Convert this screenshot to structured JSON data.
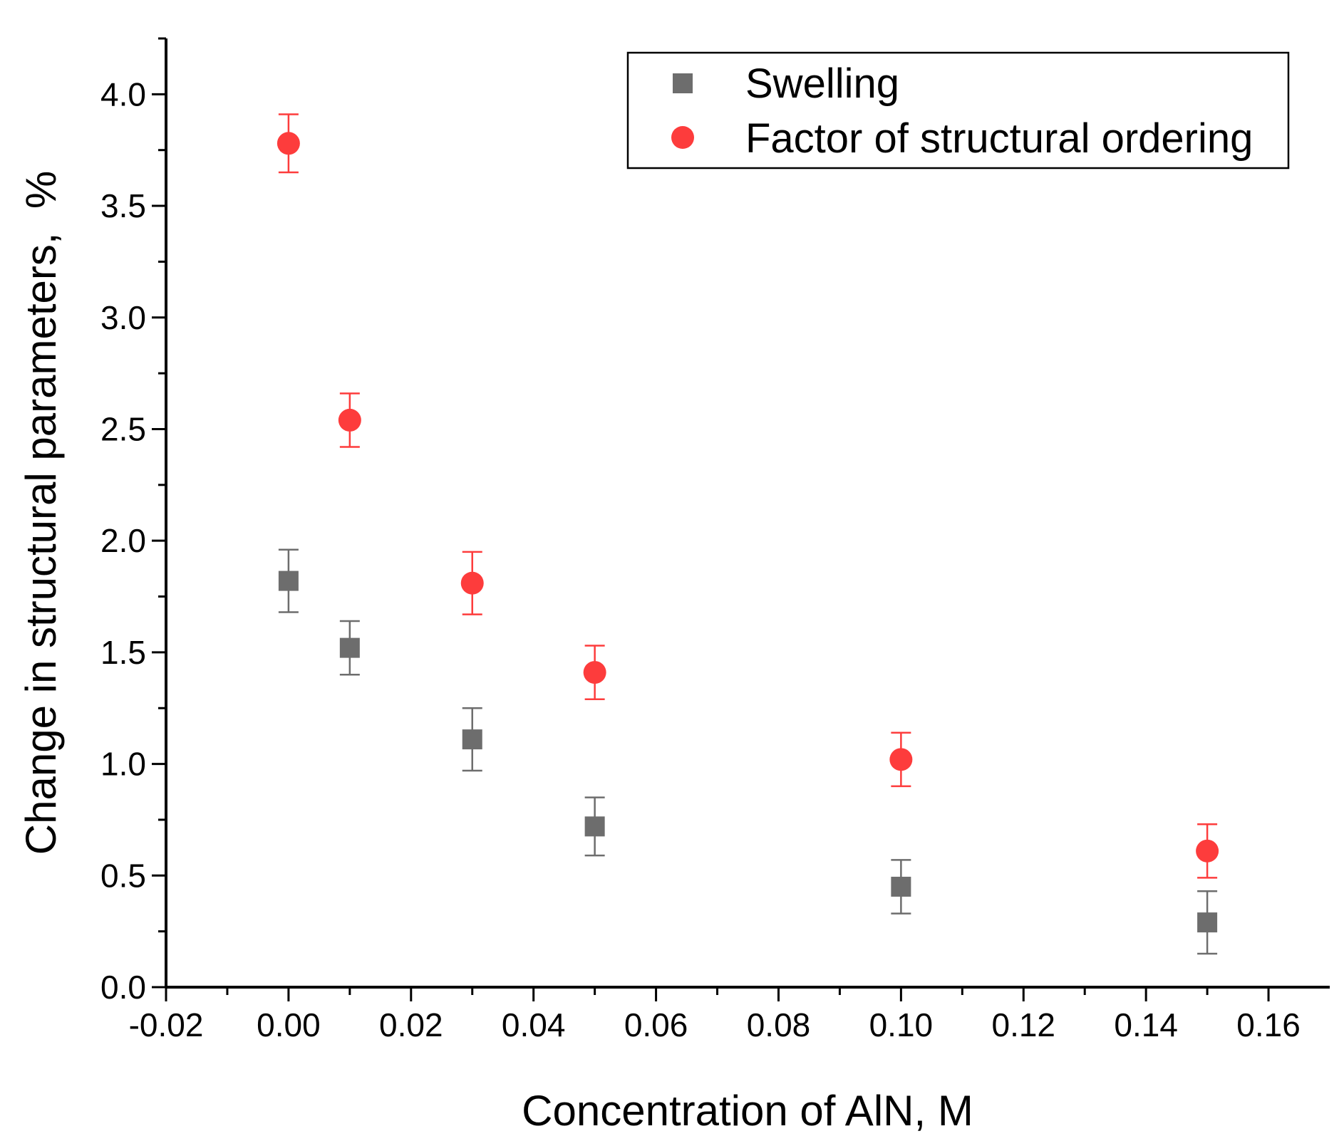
{
  "chart_data": {
    "type": "scatter",
    "title": "",
    "xlabel": "Concentration of AlN, M",
    "ylabel": "Change in structural parameters,  %",
    "xlim": [
      -0.02,
      0.17
    ],
    "ylim": [
      0.0,
      4.25
    ],
    "x_ticks": [
      "-0.02",
      "0.00",
      "0.02",
      "0.04",
      "0.06",
      "0.08",
      "0.10",
      "0.12",
      "0.14",
      "0.16"
    ],
    "y_ticks": [
      "0.0",
      "0.5",
      "1.0",
      "1.5",
      "2.0",
      "2.5",
      "3.0",
      "3.5",
      "4.0"
    ],
    "legend_position": "top-right",
    "series": [
      {
        "name": "Swelling",
        "marker": "square",
        "color": "#6d6d6d",
        "points": [
          {
            "x": 0.0,
            "y": 1.82,
            "err": 0.14
          },
          {
            "x": 0.01,
            "y": 1.52,
            "err": 0.12
          },
          {
            "x": 0.03,
            "y": 1.11,
            "err": 0.14
          },
          {
            "x": 0.05,
            "y": 0.72,
            "err": 0.13
          },
          {
            "x": 0.1,
            "y": 0.45,
            "err": 0.12
          },
          {
            "x": 0.15,
            "y": 0.29,
            "err": 0.14
          }
        ]
      },
      {
        "name": "Factor of structural ordering",
        "marker": "circle",
        "color": "#fd3c3c",
        "points": [
          {
            "x": 0.0,
            "y": 3.78,
            "err": 0.13
          },
          {
            "x": 0.01,
            "y": 2.54,
            "err": 0.12
          },
          {
            "x": 0.03,
            "y": 1.81,
            "err": 0.14
          },
          {
            "x": 0.05,
            "y": 1.41,
            "err": 0.12
          },
          {
            "x": 0.1,
            "y": 1.02,
            "err": 0.12
          },
          {
            "x": 0.15,
            "y": 0.61,
            "err": 0.12
          }
        ]
      }
    ]
  }
}
